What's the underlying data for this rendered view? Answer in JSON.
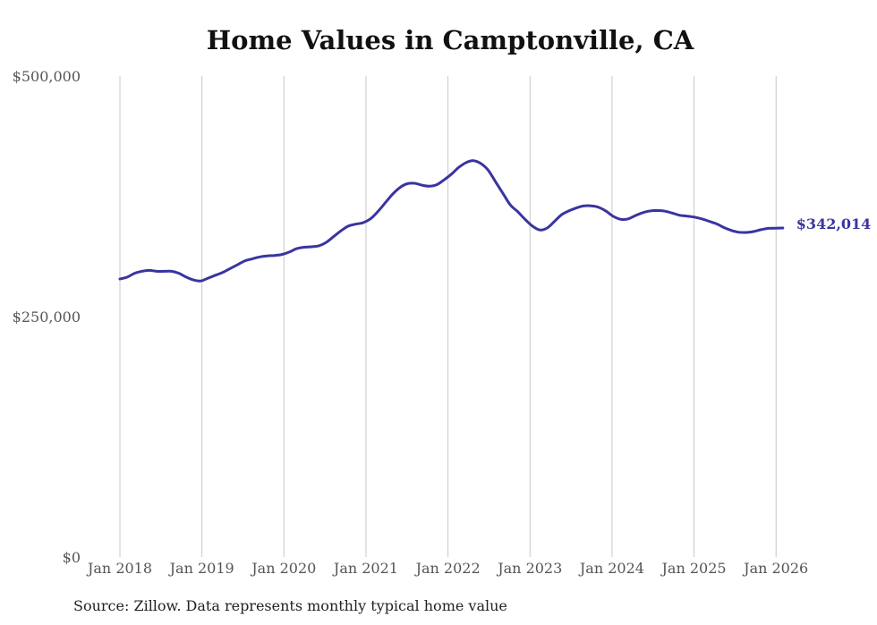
{
  "chart_data": {
    "type": "line",
    "title": "Home Values in Camptonville, CA",
    "xlabel": "",
    "ylabel": "",
    "y_ticks": [
      {
        "value": 0,
        "label": "$0"
      },
      {
        "value": 250000,
        "label": "$250,000"
      },
      {
        "value": 500000,
        "label": "$500,000"
      }
    ],
    "ylim": [
      0,
      500000
    ],
    "x_range": [
      2018.0,
      2026.0833
    ],
    "x_ticks": [
      {
        "value": 2018,
        "label": "Jan 2018"
      },
      {
        "value": 2019,
        "label": "Jan 2019"
      },
      {
        "value": 2020,
        "label": "Jan 2020"
      },
      {
        "value": 2021,
        "label": "Jan 2021"
      },
      {
        "value": 2022,
        "label": "Jan 2022"
      },
      {
        "value": 2023,
        "label": "Jan 2023"
      },
      {
        "value": 2024,
        "label": "Jan 2024"
      },
      {
        "value": 2025,
        "label": "Jan 2025"
      },
      {
        "value": 2026,
        "label": "Jan 2026"
      }
    ],
    "grid": "vertical",
    "line_color": "#3a34a0",
    "series": [
      {
        "name": "Typical home value",
        "start": "Jan 2018",
        "values": [
          289000,
          291000,
          295000,
          297000,
          298000,
          297000,
          297000,
          297000,
          295000,
          291000,
          288000,
          287000,
          290000,
          293000,
          296000,
          300000,
          304000,
          308000,
          310000,
          312000,
          313000,
          313500,
          314500,
          317000,
          320500,
          322000,
          322500,
          323500,
          327000,
          333000,
          339000,
          344000,
          346000,
          347500,
          351500,
          359000,
          368000,
          377000,
          384000,
          388000,
          388500,
          386500,
          385500,
          387000,
          392000,
          398000,
          405000,
          410000,
          412000,
          409000,
          402000,
          390000,
          378000,
          366000,
          359000,
          351000,
          344000,
          340000,
          342000,
          349000,
          356000,
          360000,
          363000,
          365000,
          365000,
          363500,
          359500,
          354000,
          351000,
          351500,
          355000,
          358000,
          359800,
          360200,
          359500,
          357500,
          355200,
          354400,
          353300,
          351500,
          349000,
          346300,
          342500,
          339500,
          337600,
          337400,
          338300,
          340200,
          341600,
          341800,
          342014
        ]
      }
    ],
    "end_label": "$342,014"
  },
  "footer": {
    "source": "Source: Zillow. Data represents monthly typical home value"
  }
}
